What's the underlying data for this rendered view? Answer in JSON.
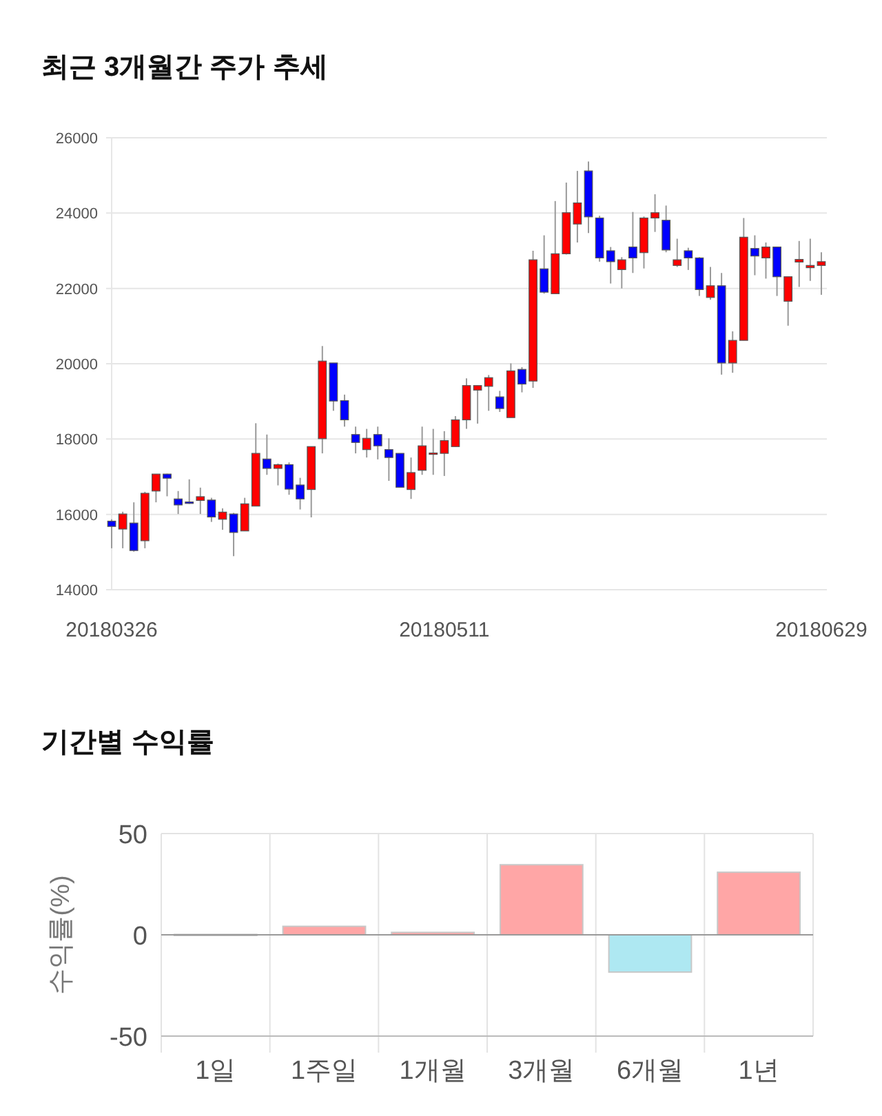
{
  "chart_data": [
    {
      "type": "candlestick",
      "title": "최근 3개월간 주가 추세",
      "categories": [
        "20180326",
        null,
        null,
        null,
        null,
        null,
        null,
        null,
        null,
        null,
        null,
        null,
        null,
        null,
        null,
        null,
        null,
        null,
        null,
        null,
        null,
        null,
        null,
        null,
        null,
        null,
        null,
        null,
        null,
        null,
        "20180511",
        null,
        null,
        null,
        null,
        null,
        null,
        null,
        null,
        null,
        null,
        null,
        null,
        null,
        null,
        null,
        null,
        null,
        null,
        null,
        null,
        null,
        null,
        null,
        null,
        null,
        null,
        null,
        null,
        null,
        null,
        null,
        null,
        null,
        "20180629"
      ],
      "ohlc": [
        [
          15820,
          15870,
          15100,
          15680
        ],
        [
          15610,
          16070,
          15100,
          16010
        ],
        [
          15770,
          16320,
          15010,
          15040
        ],
        [
          15300,
          16600,
          15100,
          16560
        ],
        [
          16620,
          17070,
          16320,
          17070
        ],
        [
          17070,
          17080,
          16480,
          16960
        ],
        [
          16410,
          16620,
          16010,
          16250
        ],
        [
          16330,
          16930,
          16280,
          16290
        ],
        [
          16370,
          16710,
          16010,
          16470
        ],
        [
          16380,
          16440,
          15800,
          15930
        ],
        [
          15870,
          16160,
          15590,
          16060
        ],
        [
          16010,
          16040,
          14890,
          15520
        ],
        [
          15560,
          16440,
          15560,
          16280
        ],
        [
          16220,
          18420,
          16220,
          17620
        ],
        [
          17470,
          18120,
          17050,
          17220
        ],
        [
          17220,
          17350,
          16770,
          17320
        ],
        [
          17320,
          17380,
          16520,
          16670
        ],
        [
          16780,
          16970,
          16130,
          16410
        ],
        [
          16660,
          17800,
          15920,
          17800
        ],
        [
          18010,
          20470,
          17620,
          20070
        ],
        [
          20020,
          20020,
          18750,
          19010
        ],
        [
          19020,
          19180,
          18330,
          18510
        ],
        [
          18120,
          18330,
          17620,
          17910
        ],
        [
          17720,
          18270,
          17510,
          18020
        ],
        [
          18120,
          18330,
          17460,
          17820
        ],
        [
          17720,
          18020,
          16890,
          17510
        ],
        [
          17620,
          17620,
          16720,
          16720
        ],
        [
          16660,
          17510,
          16410,
          17110
        ],
        [
          17170,
          18330,
          17050,
          17820
        ],
        [
          17610,
          18270,
          17050,
          17630
        ],
        [
          17620,
          18210,
          17020,
          17960
        ],
        [
          17800,
          18610,
          17800,
          18510
        ],
        [
          18510,
          19610,
          18270,
          19420
        ],
        [
          19300,
          19420,
          18410,
          19420
        ],
        [
          19400,
          19700,
          18750,
          19630
        ],
        [
          19120,
          19280,
          18720,
          18810
        ],
        [
          18570,
          20010,
          18570,
          19810
        ],
        [
          19850,
          19910,
          19240,
          19460
        ],
        [
          19540,
          23000,
          19360,
          22760
        ],
        [
          22520,
          23410,
          21860,
          21900
        ],
        [
          21860,
          24320,
          21860,
          22920
        ],
        [
          22920,
          24810,
          22900,
          24010
        ],
        [
          23710,
          25120,
          23220,
          24270
        ],
        [
          25120,
          25370,
          23470,
          23900
        ],
        [
          23870,
          23930,
          22710,
          22810
        ],
        [
          23000,
          23100,
          22130,
          22710
        ],
        [
          22500,
          22830,
          22000,
          22760
        ],
        [
          23100,
          24030,
          22410,
          22810
        ],
        [
          22950,
          23910,
          22530,
          23870
        ],
        [
          23870,
          24500,
          23500,
          24010
        ],
        [
          23810,
          24200,
          22960,
          23020
        ],
        [
          22610,
          23320,
          22570,
          22760
        ],
        [
          23000,
          23080,
          22490,
          22810
        ],
        [
          22810,
          22830,
          21800,
          21970
        ],
        [
          21760,
          22570,
          21700,
          22070
        ],
        [
          22070,
          22410,
          19710,
          20020
        ],
        [
          20020,
          20860,
          19760,
          20620
        ],
        [
          20620,
          23870,
          20620,
          23360
        ],
        [
          23060,
          23410,
          22350,
          22860
        ],
        [
          22810,
          23220,
          22260,
          23100
        ],
        [
          23100,
          23100,
          21800,
          22310
        ],
        [
          21660,
          22310,
          21010,
          22310
        ],
        [
          22700,
          23260,
          22040,
          22770
        ],
        [
          22550,
          23320,
          22200,
          22610
        ],
        [
          22610,
          22960,
          21830,
          22710
        ]
      ],
      "colors": [
        "#0000ff",
        "#ff0000",
        "#0000ff",
        "#ff0000",
        "#ff0000",
        "#0000ff",
        "#0000ff",
        "#0000ff",
        "#ff0000",
        "#0000ff",
        "#ff0000",
        "#0000ff",
        "#ff0000",
        "#ff0000",
        "#0000ff",
        "#ff0000",
        "#0000ff",
        "#0000ff",
        "#ff0000",
        "#ff0000",
        "#0000ff",
        "#0000ff",
        "#0000ff",
        "#ff0000",
        "#0000ff",
        "#0000ff",
        "#0000ff",
        "#ff0000",
        "#ff0000",
        "#ff0000",
        "#ff0000",
        "#ff0000",
        "#ff0000",
        "#ff0000",
        "#ff0000",
        "#0000ff",
        "#ff0000",
        "#0000ff",
        "#ff0000",
        "#0000ff",
        "#ff0000",
        "#ff0000",
        "#ff0000",
        "#0000ff",
        "#0000ff",
        "#0000ff",
        "#ff0000",
        "#0000ff",
        "#ff0000",
        "#ff0000",
        "#0000ff",
        "#ff0000",
        "#0000ff",
        "#0000ff",
        "#ff0000",
        "#0000ff",
        "#ff0000",
        "#ff0000",
        "#0000ff",
        "#ff0000",
        "#0000ff",
        "#ff0000",
        "#ff0000",
        "#ff0000",
        "#ff0000"
      ],
      "ylim": [
        14000,
        26000
      ],
      "yticks": [
        14000,
        16000,
        18000,
        20000,
        22000,
        24000,
        26000
      ],
      "grid": "y"
    },
    {
      "type": "bar",
      "title": "기간별 수익률",
      "ylabel": "수익률(%)",
      "categories": [
        "1일",
        "1주일",
        "1개월",
        "3개월",
        "6개월",
        "1년"
      ],
      "values": [
        0.2,
        4.2,
        1.2,
        34.6,
        -18.4,
        30.9
      ],
      "colors": [
        "#ffa6a6",
        "#ffa6a6",
        "#ffa6a6",
        "#ffa6a6",
        "#aee8f2",
        "#ffa6a6"
      ],
      "ylim": [
        -50,
        50
      ],
      "yticks": [
        -50,
        0,
        50
      ],
      "grid": true
    }
  ]
}
